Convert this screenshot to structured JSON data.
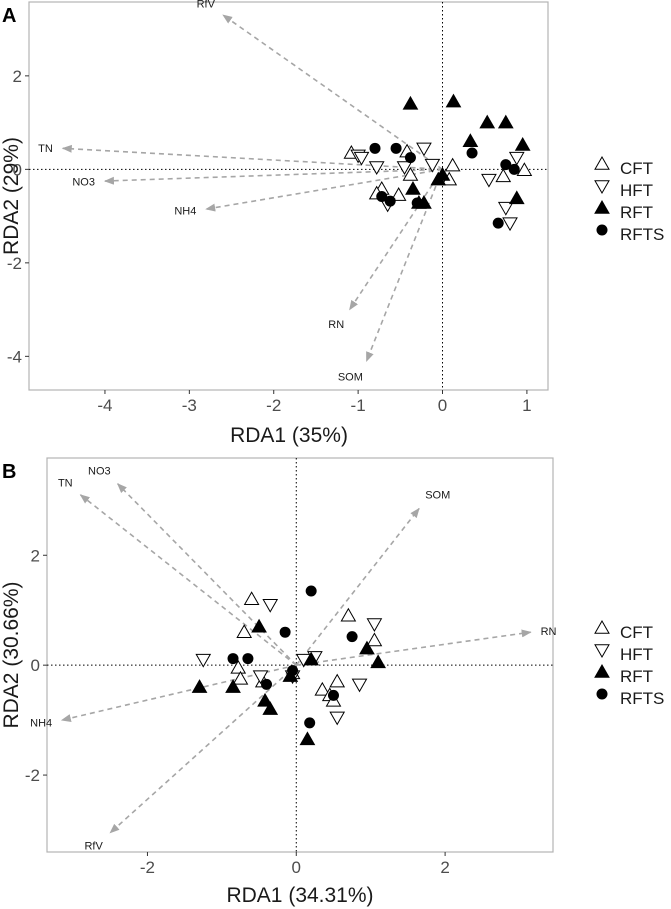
{
  "figure": {
    "panels": [
      {
        "letter": "A",
        "x_axis_label": "RDA1 (35%)",
        "y_axis_label": "RDA2 (29%)"
      },
      {
        "letter": "B",
        "x_axis_label": "RDA1 (34.31%)",
        "y_axis_label": "RDA2 (30.66%)"
      }
    ],
    "legend": [
      {
        "label": "CFT",
        "marker": "triangle-up-open"
      },
      {
        "label": "HFT",
        "marker": "triangle-down-open"
      },
      {
        "label": "RFT",
        "marker": "triangle-up-filled"
      },
      {
        "label": "RFTS",
        "marker": "circle-filled"
      }
    ]
  },
  "colors": {
    "arrow": "#a6a6a6",
    "marker": "#000000",
    "axis_frame": "#b3b3b3",
    "reference_line": "#000000"
  },
  "chart_data": [
    {
      "type": "scatter",
      "title": "A",
      "xlabel": "RDA1 (35%)",
      "ylabel": "RDA2 (29%)",
      "xlim": [
        -4.9,
        1.25
      ],
      "ylim": [
        -4.72,
        3.58
      ],
      "xticks": [
        -4,
        -3,
        -2,
        -1,
        0,
        1
      ],
      "yticks": [
        -4,
        -2,
        0,
        2
      ],
      "reference_lines": {
        "x": 0,
        "y": 0
      },
      "arrows": [
        {
          "label": "RfV",
          "x": -2.6,
          "y": 3.3
        },
        {
          "label": "TN",
          "x": -4.5,
          "y": 0.45
        },
        {
          "label": "NO3",
          "x": -4.0,
          "y": -0.25
        },
        {
          "label": "NH4",
          "x": -2.8,
          "y": -0.85
        },
        {
          "label": "RN",
          "x": -1.1,
          "y": -3.0
        },
        {
          "label": "SOM",
          "x": -0.9,
          "y": -4.1
        }
      ],
      "series": [
        {
          "name": "CFT",
          "x": [
            -1.08,
            -0.72,
            -0.78,
            -0.52,
            -0.42,
            -0.38,
            0.12,
            0.08,
            0.72,
            0.97
          ],
          "y": [
            0.35,
            -0.42,
            -0.52,
            -0.55,
            0.38,
            -0.12,
            0.08,
            -0.22,
            -0.15,
            -0.02
          ]
        },
        {
          "name": "HFT",
          "x": [
            -1.0,
            -0.96,
            -0.78,
            -0.65,
            -0.45,
            -0.22,
            -0.12,
            0.55,
            0.75,
            0.8,
            0.88
          ],
          "y": [
            0.3,
            0.25,
            0.05,
            -0.75,
            0.05,
            0.45,
            0.1,
            -0.22,
            -0.82,
            -1.15,
            0.25
          ]
        },
        {
          "name": "RFT",
          "x": [
            -0.38,
            -0.35,
            -0.28,
            -0.22,
            -0.05,
            0.0,
            0.13,
            0.33,
            0.53,
            0.75,
            0.88,
            0.95
          ],
          "y": [
            1.4,
            -0.42,
            -0.72,
            -0.72,
            -0.22,
            -0.12,
            1.45,
            0.6,
            1.0,
            1.0,
            -0.62,
            0.52
          ]
        },
        {
          "name": "RFTS",
          "x": [
            -0.8,
            -0.72,
            -0.62,
            -0.55,
            -0.38,
            -0.3,
            0.35,
            0.66,
            0.75,
            0.85
          ],
          "y": [
            0.45,
            -0.58,
            -0.68,
            0.45,
            0.25,
            -0.72,
            0.35,
            -1.15,
            0.1,
            0.0
          ]
        }
      ]
    },
    {
      "type": "scatter",
      "title": "B",
      "xlabel": "RDA1 (34.31%)",
      "ylabel": "RDA2 (30.66%)",
      "xlim": [
        -3.35,
        3.45
      ],
      "ylim": [
        -3.4,
        3.77
      ],
      "xticks": [
        -2,
        0,
        2
      ],
      "yticks": [
        -2,
        0,
        2
      ],
      "reference_lines": {
        "x": 0,
        "y": 0
      },
      "arrows": [
        {
          "label": "NO3",
          "x": -2.4,
          "y": 3.3
        },
        {
          "label": "TN",
          "x": -2.9,
          "y": 3.1
        },
        {
          "label": "SOM",
          "x": 1.65,
          "y": 2.85
        },
        {
          "label": "RN",
          "x": 3.15,
          "y": 0.6
        },
        {
          "label": "NH4",
          "x": -3.15,
          "y": -1.0
        },
        {
          "label": "RfV",
          "x": -2.5,
          "y": -3.05
        }
      ],
      "series": [
        {
          "name": "CFT",
          "x": [
            -0.6,
            -0.7,
            -0.78,
            -0.75,
            -0.45,
            -0.05,
            0.7,
            1.05,
            0.35,
            0.45,
            0.5,
            0.55
          ],
          "y": [
            1.2,
            0.6,
            -0.05,
            -0.25,
            -0.3,
            -0.15,
            0.9,
            0.45,
            -0.45,
            -0.55,
            -0.65,
            -0.3
          ]
        },
        {
          "name": "HFT",
          "x": [
            -1.25,
            -0.35,
            -0.48,
            -0.05,
            0.1,
            0.25,
            0.55,
            0.85,
            1.05
          ],
          "y": [
            0.1,
            1.1,
            -0.2,
            -0.2,
            0.1,
            0.15,
            -0.95,
            -0.35,
            0.75
          ]
        },
        {
          "name": "RFT",
          "x": [
            -1.3,
            -0.85,
            -0.5,
            -0.42,
            -0.35,
            -0.08,
            0.15,
            0.2,
            0.95,
            1.1
          ],
          "y": [
            -0.4,
            -0.4,
            0.7,
            -0.65,
            -0.8,
            -0.2,
            -1.35,
            0.1,
            0.3,
            0.05
          ]
        },
        {
          "name": "RFTS",
          "x": [
            -0.85,
            -0.65,
            -0.4,
            -0.15,
            -0.05,
            0.2,
            0.18,
            0.5,
            0.75
          ],
          "y": [
            0.12,
            0.12,
            -0.35,
            0.6,
            -0.1,
            1.35,
            -1.05,
            -0.55,
            0.52
          ]
        }
      ]
    }
  ]
}
